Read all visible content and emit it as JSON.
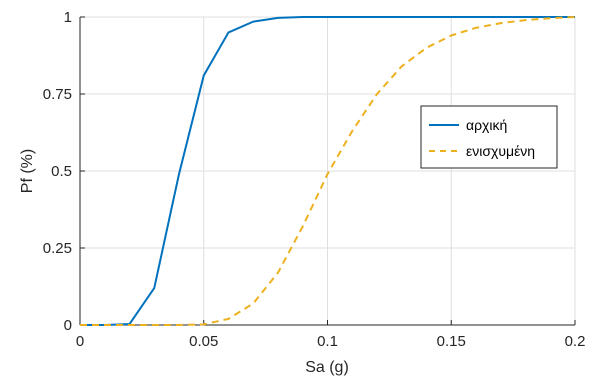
{
  "chart_data": {
    "type": "line",
    "title": "",
    "xlabel": "Sa (g)",
    "ylabel": "Pf (%)",
    "xlim": [
      0,
      0.2
    ],
    "ylim": [
      0,
      1
    ],
    "xticks": [
      0,
      0.05,
      0.1,
      0.15,
      0.2
    ],
    "xtick_labels": [
      "0",
      "0.05",
      "0.1",
      "0.15",
      "0.2"
    ],
    "yticks": [
      0,
      0.25,
      0.5,
      0.75,
      1
    ],
    "ytick_labels": [
      "0",
      "0.25",
      "0.5",
      "0.75",
      "1"
    ],
    "grid": true,
    "legend_position": "right-upper",
    "series": [
      {
        "name": "αρχική",
        "color": "#0072bd",
        "style": "solid",
        "x": [
          0,
          0.01,
          0.02,
          0.03,
          0.04,
          0.05,
          0.06,
          0.07,
          0.08,
          0.09,
          0.1,
          0.11,
          0.12,
          0.13,
          0.14,
          0.15,
          0.16,
          0.17,
          0.18,
          0.19,
          0.2
        ],
        "y": [
          0,
          0,
          0.003,
          0.12,
          0.49,
          0.81,
          0.95,
          0.985,
          0.997,
          1,
          1,
          1,
          1,
          1,
          1,
          1,
          1,
          1,
          1,
          1,
          1
        ]
      },
      {
        "name": "ενισχυμένη",
        "color": "#edb120",
        "style": "dashed",
        "x": [
          0,
          0.01,
          0.02,
          0.03,
          0.04,
          0.05,
          0.06,
          0.07,
          0.08,
          0.09,
          0.1,
          0.11,
          0.12,
          0.13,
          0.14,
          0.15,
          0.16,
          0.17,
          0.18,
          0.19,
          0.2
        ],
        "y": [
          0,
          0,
          0,
          0,
          0,
          0.002,
          0.02,
          0.07,
          0.17,
          0.32,
          0.49,
          0.63,
          0.75,
          0.84,
          0.9,
          0.94,
          0.965,
          0.98,
          0.99,
          0.996,
          1
        ]
      }
    ]
  }
}
